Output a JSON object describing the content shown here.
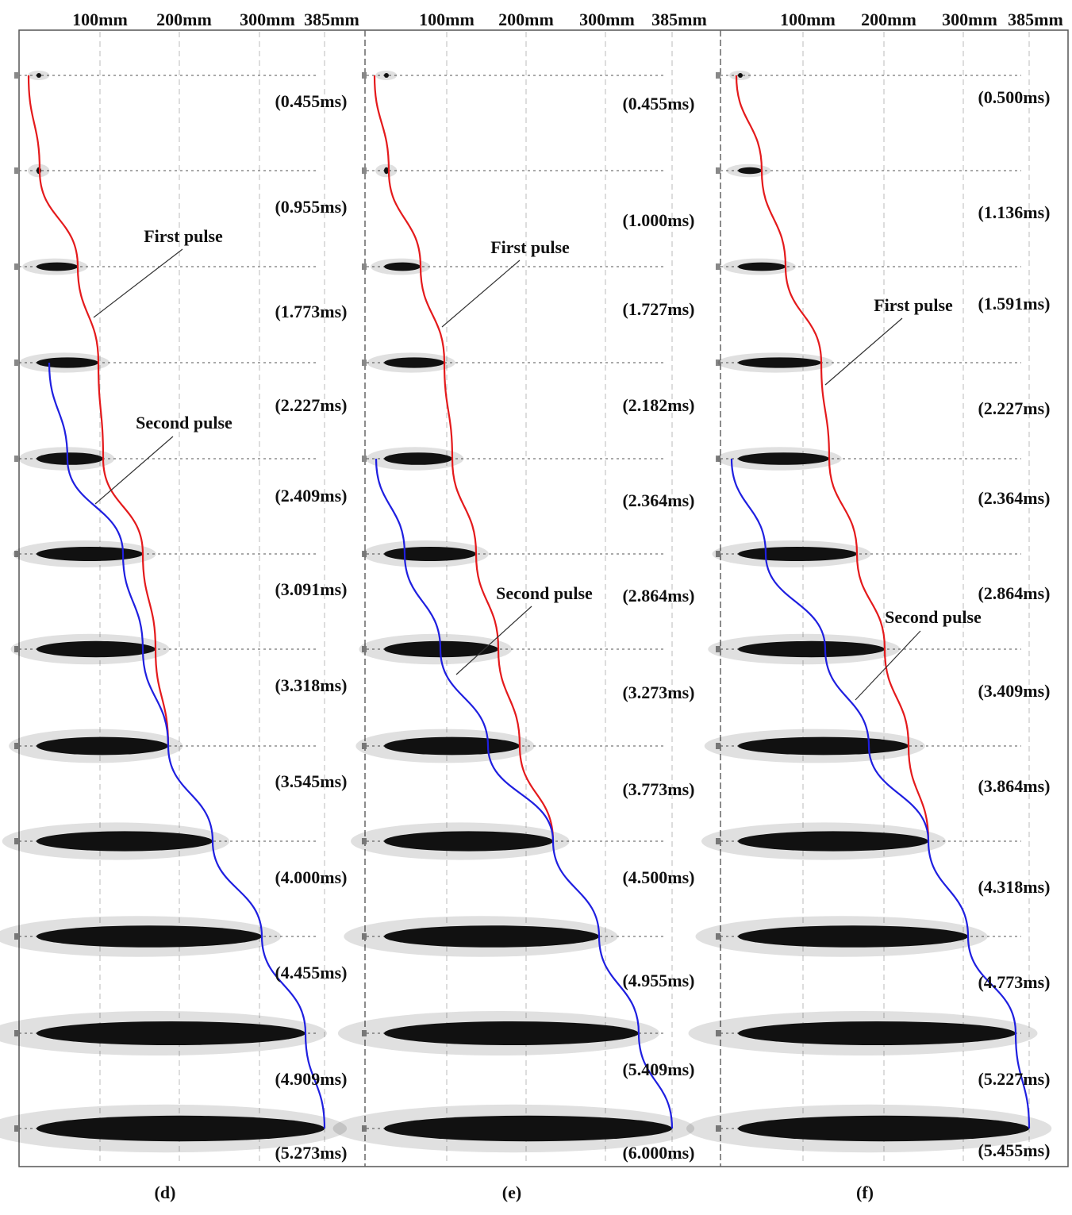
{
  "panels": [
    {
      "scale_labels": [
        "100mm",
        "200mm",
        "300mm",
        "385mm"
      ],
      "frames": [
        "(0.455ms)",
        "(0.955ms)",
        "(1.773ms)",
        "(2.227ms)",
        "(2.409ms)",
        "(3.091ms)",
        "(3.318ms)",
        "(3.545ms)",
        "(4.000ms)",
        "(4.455ms)",
        "(4.909ms)",
        "(5.273ms)"
      ],
      "annotations": [
        "First pulse",
        "Second pulse"
      ],
      "caption": "(d)"
    },
    {
      "scale_labels": [
        "100mm",
        "200mm",
        "300mm",
        "385mm"
      ],
      "frames": [
        "(0.455ms)",
        "(1.000ms)",
        "(1.727ms)",
        "(2.182ms)",
        "(2.364ms)",
        "(2.864ms)",
        "(3.273ms)",
        "(3.773ms)",
        "(4.500ms)",
        "(4.955ms)",
        "(5.409ms)",
        "(6.000ms)"
      ],
      "annotations": [
        "First pulse",
        "Second pulse"
      ],
      "caption": "(e)"
    },
    {
      "scale_labels": [
        "100mm",
        "200mm",
        "300mm",
        "385mm"
      ],
      "frames": [
        "(0.500ms)",
        "(1.136ms)",
        "(1.591ms)",
        "(2.227ms)",
        "(2.364ms)",
        "(2.864ms)",
        "(3.409ms)",
        "(3.864ms)",
        "(4.318ms)",
        "(4.773ms)",
        "(5.227ms)",
        "(5.455ms)"
      ],
      "annotations": [
        "First pulse",
        "Second pulse"
      ],
      "caption": "(f)"
    }
  ]
}
